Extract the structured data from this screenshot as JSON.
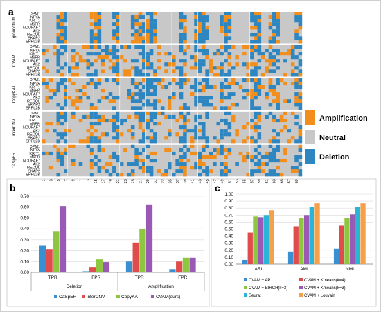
{
  "panels": {
    "a": {
      "letter": "a",
      "genes": [
        "DPM1",
        "NFYA",
        "KRIT1",
        "M6PR",
        "NDUFAF7",
        "AK2",
        "RECQL",
        "SKAP2",
        "SPPL2B"
      ],
      "groups": [
        "groundtruth",
        "CVAM",
        "CopyKAT",
        "inferCNV",
        "CaSpER"
      ],
      "cells": [
        1,
        3,
        5,
        7,
        9,
        11,
        13,
        15,
        17,
        19,
        21,
        23,
        25,
        27,
        29,
        31,
        33,
        35,
        37,
        39,
        41,
        43,
        45,
        47,
        49,
        51,
        53,
        55,
        57,
        59,
        61,
        63,
        65,
        67,
        69
      ],
      "legend": [
        {
          "label": "Amplification",
          "color": "#f28e1c"
        },
        {
          "label": "Neutral",
          "color": "#c8c8c8"
        },
        {
          "label": "Deletion",
          "color": "#2e86c1"
        }
      ]
    },
    "b": {
      "letter": "b"
    },
    "c": {
      "letter": "c"
    }
  },
  "chart_data": [
    {
      "type": "heatmap",
      "panel": "a",
      "rows_groups": [
        "groundtruth",
        "CVAM",
        "CopyKAT",
        "inferCNV",
        "CaSpER"
      ],
      "genes": [
        "DPM1",
        "NFYA",
        "KRIT1",
        "M6PR",
        "NDUFAF7",
        "AK2",
        "RECQL",
        "SKAP2",
        "SPPL2B"
      ],
      "x_tick_labels": [
        1,
        3,
        5,
        7,
        9,
        11,
        13,
        15,
        17,
        19,
        21,
        23,
        25,
        27,
        29,
        31,
        33,
        35,
        37,
        39,
        41,
        43,
        45,
        47,
        49,
        51,
        53,
        55,
        57,
        59,
        61,
        63,
        65,
        67,
        69
      ],
      "categories": [
        "Amplification",
        "Neutral",
        "Deletion"
      ]
    },
    {
      "type": "bar",
      "panel": "b",
      "categories": [
        "TPR",
        "FPR",
        "TPR",
        "FPR"
      ],
      "groups": [
        "Deletion",
        "Amplification"
      ],
      "series": [
        {
          "name": "CaSpER",
          "color": "#3a8fd1",
          "values": [
            0.245,
            0.01,
            0.1,
            0.03
          ]
        },
        {
          "name": "inferCNV",
          "color": "#e04b4b",
          "values": [
            0.215,
            0.05,
            0.275,
            0.1
          ]
        },
        {
          "name": "CopyKAT",
          "color": "#8dc63f",
          "values": [
            0.38,
            0.12,
            0.4,
            0.135
          ]
        },
        {
          "name": "CVAM(ours)",
          "color": "#9b59b6",
          "values": [
            0.61,
            0.095,
            0.625,
            0.135
          ]
        }
      ],
      "ylim": [
        0,
        0.7
      ],
      "yticks": [
        "0.00",
        "0.10",
        "0.20",
        "0.30",
        "0.40",
        "0.50",
        "0.60",
        "0.70"
      ],
      "grid": true,
      "legend_position": "bottom"
    },
    {
      "type": "bar",
      "panel": "c",
      "categories": [
        "ARI",
        "AMI",
        "NMI"
      ],
      "series": [
        {
          "name": "CVAM + AP",
          "color": "#3a8fd1",
          "values": [
            0.06,
            0.18,
            0.22
          ]
        },
        {
          "name": "CVAM + Kmeans(k=4)",
          "color": "#e04b4b",
          "values": [
            0.45,
            0.54,
            0.55
          ]
        },
        {
          "name": "CVAM + BIRCH(k=3)",
          "color": "#8dc63f",
          "values": [
            0.68,
            0.66,
            0.66
          ]
        },
        {
          "name": "CVAM + Kmeans(k=3)",
          "color": "#9b59b6",
          "values": [
            0.67,
            0.7,
            0.71
          ]
        },
        {
          "name": "Seurat",
          "color": "#29b6d6",
          "values": [
            0.7,
            0.82,
            0.82
          ]
        },
        {
          "name": "CVAM + Louvain",
          "color": "#f5a04b",
          "values": [
            0.77,
            0.87,
            0.87
          ]
        }
      ],
      "ylim": [
        0,
        1.0
      ],
      "yticks": [
        "0.00",
        "0.10",
        "0.20",
        "0.30",
        "0.40",
        "0.50",
        "0.60",
        "0.70",
        "0.80",
        "0.90",
        "1.00"
      ],
      "grid": true,
      "legend_position": "bottom"
    }
  ]
}
